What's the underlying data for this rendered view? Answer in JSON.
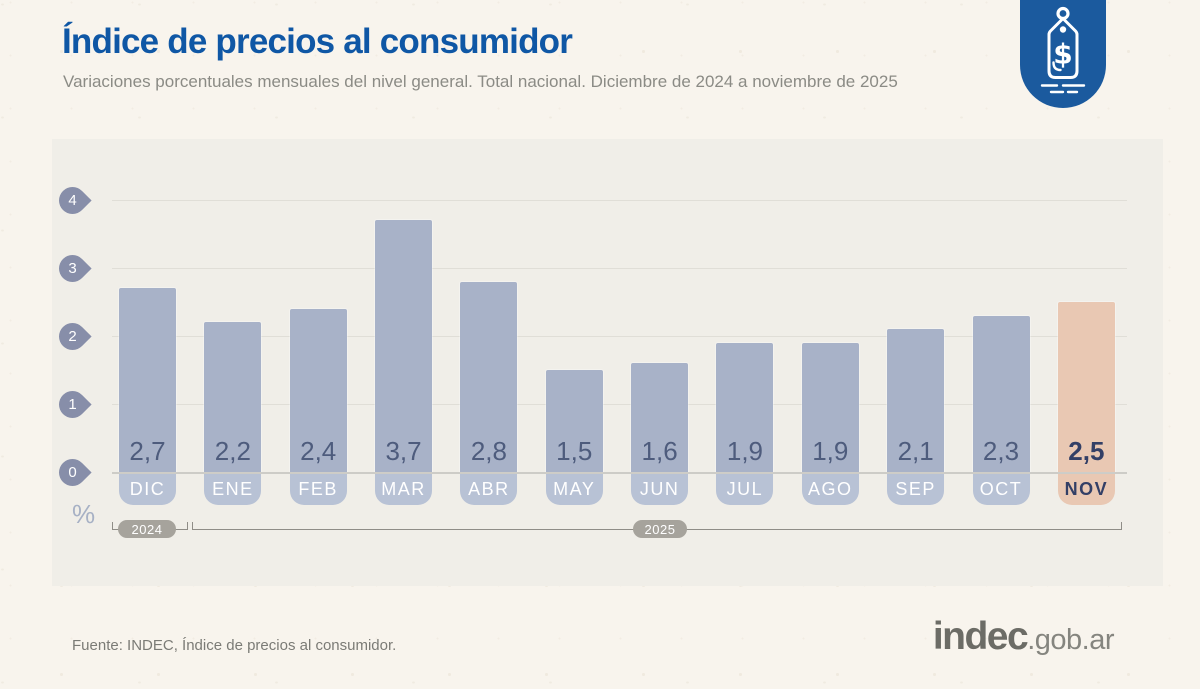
{
  "header": {
    "title": "Índice de precios al consumidor",
    "subtitle": "Variaciones porcentuales mensuales del nivel general. Total nacional. Diciembre de 2024 a noviembre de 2025"
  },
  "icon": {
    "name": "price-tag-icon",
    "symbol": "$",
    "color": "#1b5a9e"
  },
  "chart_data": {
    "type": "bar",
    "title": "Índice de precios al consumidor",
    "subtitle": "Variaciones porcentuales mensuales del nivel general. Total nacional. Diciembre de 2024 a noviembre de 2025",
    "categories": [
      "DIC",
      "ENE",
      "FEB",
      "MAR",
      "ABR",
      "MAY",
      "JUN",
      "JUL",
      "AGO",
      "SEP",
      "OCT",
      "NOV"
    ],
    "values": [
      2.7,
      2.2,
      2.4,
      3.7,
      2.8,
      1.5,
      1.6,
      1.9,
      1.9,
      2.1,
      2.3,
      2.5
    ],
    "value_labels": [
      "2,7",
      "2,2",
      "2,4",
      "3,7",
      "2,8",
      "1,5",
      "1,6",
      "1,9",
      "1,9",
      "2,1",
      "2,3",
      "2,5"
    ],
    "highlight_index": 11,
    "highlighted_category": "NOV",
    "y_ticks": [
      4,
      3,
      2,
      1,
      0
    ],
    "ylim": [
      0,
      4.4
    ],
    "unit_label": "%",
    "grid": "horizontal",
    "legend": "none",
    "year_groups": [
      {
        "label": "2024",
        "months": [
          "DIC"
        ]
      },
      {
        "label": "2025",
        "months": [
          "ENE",
          "FEB",
          "MAR",
          "ABR",
          "MAY",
          "JUN",
          "JUL",
          "AGO",
          "SEP",
          "OCT",
          "NOV"
        ]
      }
    ],
    "colors": {
      "bar": "#a8b2c8",
      "bar_highlight": "#e9c8b3",
      "month_badge": "#b8c2d5",
      "value_text": "#4e5c7d",
      "highlight_text": "#333f66",
      "axis_marker": "#878ea9"
    }
  },
  "footer": {
    "source": "Fuente: INDEC, Índice de precios al consumidor.",
    "logo_text": "indec",
    "logo_suffix": ".gob.ar"
  }
}
